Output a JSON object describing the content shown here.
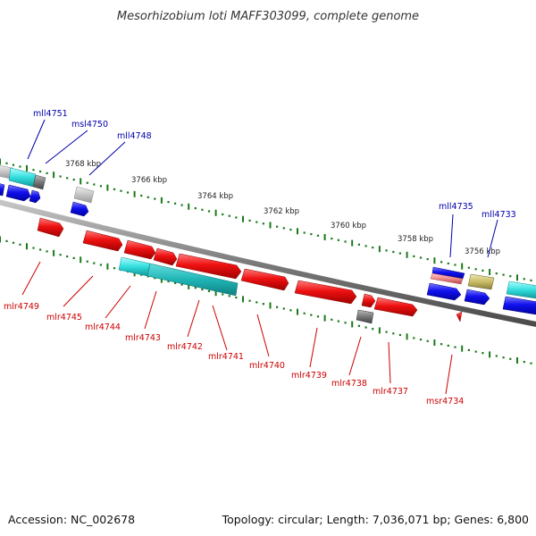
{
  "title": "Mesorhizobium loti MAFF303099, complete genome",
  "footer": {
    "accession": "Accession: NC_002678",
    "summary": "Topology: circular; Length: 7,036,071 bp; Genes: 6,800"
  },
  "scale_labels": [
    "3768 kbp",
    "3766 kbp",
    "3764 kbp",
    "3762 kbp",
    "3760 kbp",
    "3758 kbp",
    "3756 kbp"
  ],
  "gene_labels_top": [
    "mll4751",
    "msl4750",
    "mll4748",
    "mll4735",
    "mll4733"
  ],
  "gene_labels_bottom": [
    "mlr4749",
    "mlr4745",
    "mlr4744",
    "mlr4743",
    "mlr4742",
    "mlr4741",
    "mlr4740",
    "mlr4739",
    "mlr4738",
    "mlr4737",
    "msr4734"
  ],
  "colors": {
    "forward_gene": "#ee1111",
    "reverse_gene": "#1111ee",
    "label_forward": "#cc0000",
    "label_reverse": "#0000aa",
    "tick": "#1a7a1a",
    "backbone": "#7a7a7a",
    "cyan": "#22dddd",
    "teal": "#1fb5b5",
    "grey": "#888888",
    "olive": "#c9bc66"
  }
}
